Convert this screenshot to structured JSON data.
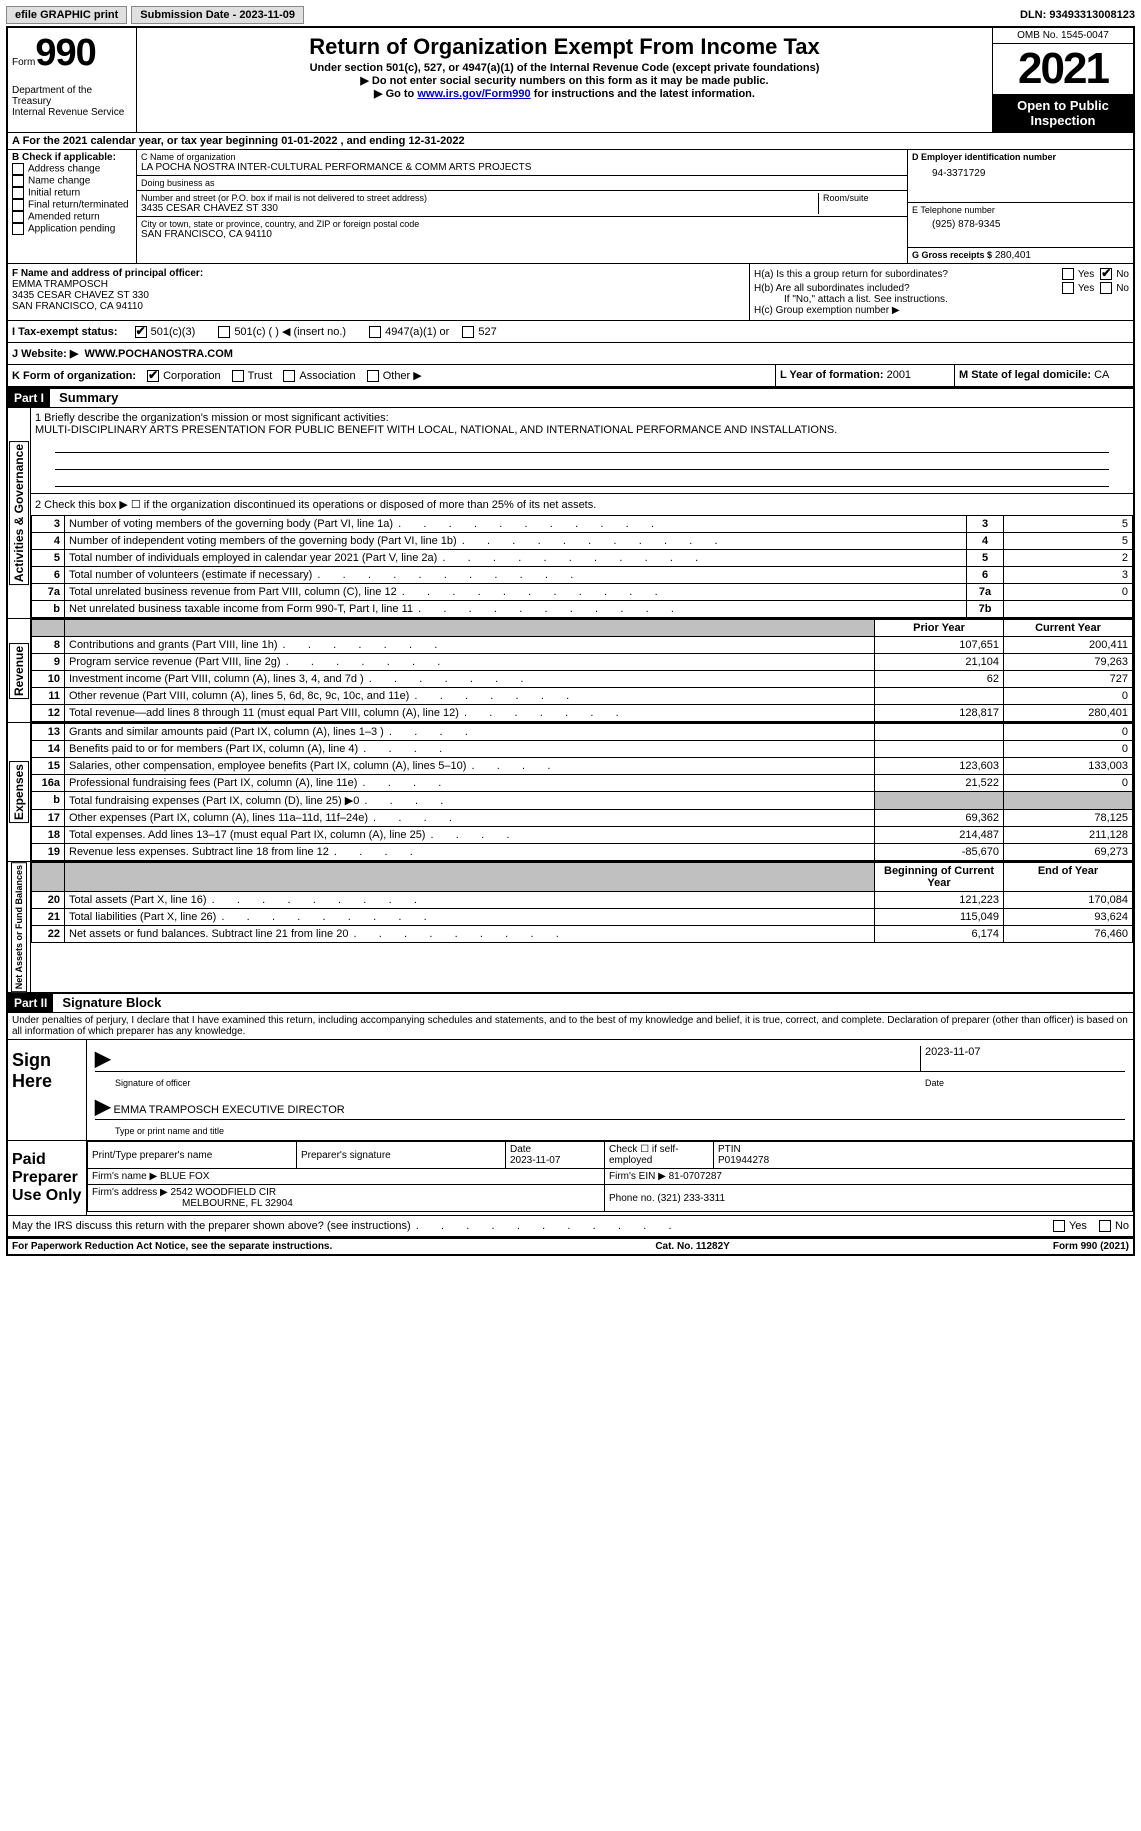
{
  "topbar": {
    "efile_label": "efile GRAPHIC print",
    "submission_label": "Submission Date - 2023-11-09",
    "dln_label": "DLN: 93493313008123"
  },
  "header": {
    "form_label": "Form",
    "form_number": "990",
    "dept": "Department of the Treasury\nInternal Revenue Service",
    "title": "Return of Organization Exempt From Income Tax",
    "subtitle": "Under section 501(c), 527, or 4947(a)(1) of the Internal Revenue Code (except private foundations)",
    "line1": "▶ Do not enter social security numbers on this form as it may be made public.",
    "line2_pre": "▶ Go to ",
    "line2_link": "www.irs.gov/Form990",
    "line2_post": " for instructions and the latest information.",
    "omb": "OMB No. 1545-0047",
    "tax_year": "2021",
    "open_public": "Open to Public Inspection"
  },
  "line_a": "A For the 2021 calendar year, or tax year beginning 01-01-2022    , and ending 12-31-2022",
  "box_b": {
    "label": "B Check if applicable:",
    "items": [
      "Address change",
      "Name change",
      "Initial return",
      "Final return/terminated",
      "Amended return",
      "Application pending"
    ]
  },
  "box_c": {
    "name_label": "C Name of organization",
    "name": "LA POCHA NOSTRA INTER-CULTURAL PERFORMANCE & COMM ARTS PROJECTS",
    "dba_label": "Doing business as",
    "dba": "",
    "addr_label": "Number and street (or P.O. box if mail is not delivered to street address)",
    "room_label": "Room/suite",
    "addr": "3435 CESAR CHAVEZ ST 330",
    "city_label": "City or town, state or province, country, and ZIP or foreign postal code",
    "city": "SAN FRANCISCO, CA  94110"
  },
  "box_d": {
    "ein_label": "D Employer identification number",
    "ein": "94-3371729",
    "tel_label": "E Telephone number",
    "tel": "(925) 878-9345",
    "gross_label": "G Gross receipts $",
    "gross": "280,401"
  },
  "box_f": {
    "label": "F Name and address of principal officer:",
    "name": "EMMA TRAMPOSCH",
    "addr1": "3435 CESAR CHAVEZ ST 330",
    "addr2": "SAN FRANCISCO, CA  94110"
  },
  "box_h": {
    "a_label": "H(a)  Is this a group return for subordinates?",
    "yes": "Yes",
    "no": "No",
    "b_label": "H(b)  Are all subordinates included?",
    "b_note": "If \"No,\" attach a list. See instructions.",
    "c_label": "H(c)  Group exemption number ▶"
  },
  "row_i": {
    "label": "I  Tax-exempt status:",
    "opts": [
      "501(c)(3)",
      "501(c) (  ) ◀ (insert no.)",
      "4947(a)(1) or",
      "527"
    ]
  },
  "row_j": {
    "label": "J  Website: ▶",
    "val": "WWW.POCHANOSTRA.COM"
  },
  "row_k": {
    "k_label": "K Form of organization:",
    "opts": [
      "Corporation",
      "Trust",
      "Association",
      "Other ▶"
    ],
    "l_label": "L Year of formation:",
    "l_val": "2001",
    "m_label": "M State of legal domicile:",
    "m_val": "CA"
  },
  "part1": {
    "header": "Part I",
    "title": "Summary",
    "sections": {
      "governance": "Activities & Governance",
      "revenue": "Revenue",
      "expenses": "Expenses",
      "netassets": "Net Assets or Fund Balances"
    },
    "line1_label": "1   Briefly describe the organization's mission or most significant activities:",
    "line1_text": "MULTI-DISCIPLINARY ARTS PRESENTATION FOR PUBLIC BENEFIT WITH LOCAL, NATIONAL, AND INTERNATIONAL PERFORMANCE AND INSTALLATIONS.",
    "line2": "2   Check this box ▶ ☐ if the organization discontinued its operations or disposed of more than 25% of its net assets.",
    "gov_rows": [
      {
        "n": "3",
        "label": "Number of voting members of the governing body (Part VI, line 1a)",
        "box": "3",
        "val": "5"
      },
      {
        "n": "4",
        "label": "Number of independent voting members of the governing body (Part VI, line 1b)",
        "box": "4",
        "val": "5"
      },
      {
        "n": "5",
        "label": "Total number of individuals employed in calendar year 2021 (Part V, line 2a)",
        "box": "5",
        "val": "2"
      },
      {
        "n": "6",
        "label": "Total number of volunteers (estimate if necessary)",
        "box": "6",
        "val": "3"
      },
      {
        "n": "7a",
        "label": "Total unrelated business revenue from Part VIII, column (C), line 12",
        "box": "7a",
        "val": "0"
      },
      {
        "n": "b",
        "label": "Net unrelated business taxable income from Form 990-T, Part I, line 11",
        "box": "7b",
        "val": ""
      }
    ],
    "col_headers": {
      "prior": "Prior Year",
      "current": "Current Year"
    },
    "rev_rows": [
      {
        "n": "8",
        "label": "Contributions and grants (Part VIII, line 1h)",
        "prior": "107,651",
        "current": "200,411"
      },
      {
        "n": "9",
        "label": "Program service revenue (Part VIII, line 2g)",
        "prior": "21,104",
        "current": "79,263"
      },
      {
        "n": "10",
        "label": "Investment income (Part VIII, column (A), lines 3, 4, and 7d )",
        "prior": "62",
        "current": "727"
      },
      {
        "n": "11",
        "label": "Other revenue (Part VIII, column (A), lines 5, 6d, 8c, 9c, 10c, and 11e)",
        "prior": "",
        "current": "0"
      },
      {
        "n": "12",
        "label": "Total revenue—add lines 8 through 11 (must equal Part VIII, column (A), line 12)",
        "prior": "128,817",
        "current": "280,401"
      }
    ],
    "exp_rows": [
      {
        "n": "13",
        "label": "Grants and similar amounts paid (Part IX, column (A), lines 1–3 )",
        "prior": "",
        "current": "0"
      },
      {
        "n": "14",
        "label": "Benefits paid to or for members (Part IX, column (A), line 4)",
        "prior": "",
        "current": "0"
      },
      {
        "n": "15",
        "label": "Salaries, other compensation, employee benefits (Part IX, column (A), lines 5–10)",
        "prior": "123,603",
        "current": "133,003"
      },
      {
        "n": "16a",
        "label": "Professional fundraising fees (Part IX, column (A), line 11e)",
        "prior": "21,522",
        "current": "0"
      },
      {
        "n": "b",
        "label": "Total fundraising expenses (Part IX, column (D), line 25) ▶0",
        "prior": "SHADE",
        "current": "SHADE"
      },
      {
        "n": "17",
        "label": "Other expenses (Part IX, column (A), lines 11a–11d, 11f–24e)",
        "prior": "69,362",
        "current": "78,125"
      },
      {
        "n": "18",
        "label": "Total expenses. Add lines 13–17 (must equal Part IX, column (A), line 25)",
        "prior": "214,487",
        "current": "211,128"
      },
      {
        "n": "19",
        "label": "Revenue less expenses. Subtract line 18 from line 12",
        "prior": "-85,670",
        "current": "69,273"
      }
    ],
    "na_headers": {
      "begin": "Beginning of Current Year",
      "end": "End of Year"
    },
    "na_rows": [
      {
        "n": "20",
        "label": "Total assets (Part X, line 16)",
        "prior": "121,223",
        "current": "170,084"
      },
      {
        "n": "21",
        "label": "Total liabilities (Part X, line 26)",
        "prior": "115,049",
        "current": "93,624"
      },
      {
        "n": "22",
        "label": "Net assets or fund balances. Subtract line 21 from line 20",
        "prior": "6,174",
        "current": "76,460"
      }
    ]
  },
  "part2": {
    "header": "Part II",
    "title": "Signature Block",
    "declaration": "Under penalties of perjury, I declare that I have examined this return, including accompanying schedules and statements, and to the best of my knowledge and belief, it is true, correct, and complete. Declaration of preparer (other than officer) is based on all information of which preparer has any knowledge.",
    "sign_here": "Sign Here",
    "sig_date": "2023-11-07",
    "sig_officer_label": "Signature of officer",
    "sig_date_label": "Date",
    "officer_name": "EMMA TRAMPOSCH  EXECUTIVE DIRECTOR",
    "officer_name_label": "Type or print name and title",
    "paid_label": "Paid Preparer Use Only",
    "prep_name_label": "Print/Type preparer's name",
    "prep_sig_label": "Preparer's signature",
    "prep_date_label": "Date",
    "prep_date": "2023-11-07",
    "prep_check_label": "Check ☐ if self-employed",
    "ptin_label": "PTIN",
    "ptin": "P01944278",
    "firm_name_label": "Firm's name    ▶",
    "firm_name": "BLUE FOX",
    "firm_ein_label": "Firm's EIN ▶",
    "firm_ein": "81-0707287",
    "firm_addr_label": "Firm's address ▶",
    "firm_addr1": "2542 WOODFIELD CIR",
    "firm_addr2": "MELBOURNE, FL  32904",
    "phone_label": "Phone no.",
    "phone": "(321) 233-3311",
    "discuss": "May the IRS discuss this return with the preparer shown above? (see instructions)",
    "discuss_yes": "Yes",
    "discuss_no": "No"
  },
  "footer": {
    "left": "For Paperwork Reduction Act Notice, see the separate instructions.",
    "mid": "Cat. No. 11282Y",
    "right": "Form 990 (2021)"
  }
}
